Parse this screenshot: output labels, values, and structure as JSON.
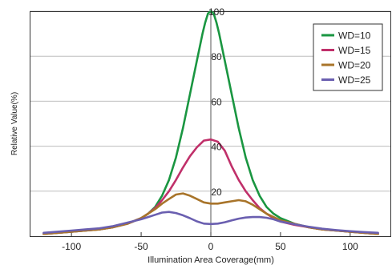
{
  "chart_data": {
    "type": "line",
    "xlabel": "Illumination Area Coverage(mm)",
    "ylabel": "Relative Value(%)",
    "xlim": [
      -130,
      130
    ],
    "ylim": [
      0,
      100
    ],
    "x_ticks": [
      "-100",
      "-50",
      "0",
      "50",
      "100"
    ],
    "x_tick_values": [
      -100,
      -50,
      0,
      50,
      100
    ],
    "y_ticks": [
      "20",
      "40",
      "60",
      "80",
      "100"
    ],
    "y_tick_values": [
      20,
      40,
      60,
      80,
      100
    ],
    "grid": "horizontal",
    "legend_position": "top-right",
    "series": [
      {
        "name": "WD=10",
        "color": "#1a9641",
        "x": [
          -120,
          -110,
          -100,
          -90,
          -80,
          -70,
          -60,
          -50,
          -45,
          -40,
          -35,
          -30,
          -25,
          -20,
          -15,
          -10,
          -8,
          -6,
          -4,
          -2,
          0,
          2,
          4,
          6,
          8,
          10,
          15,
          20,
          25,
          30,
          35,
          40,
          45,
          50,
          60,
          70,
          80,
          90,
          100,
          110,
          120
        ],
        "y": [
          1,
          1.5,
          2,
          2.5,
          3,
          4,
          5.5,
          8,
          10,
          13,
          18,
          25,
          35,
          48,
          63,
          78,
          84,
          90,
          95,
          99,
          100,
          99,
          95,
          90,
          84,
          78,
          63,
          48,
          35,
          25,
          18,
          13,
          10,
          8,
          5.5,
          4,
          3,
          2.5,
          2,
          1.5,
          1
        ]
      },
      {
        "name": "WD=15",
        "color": "#c0306a",
        "x": [
          -120,
          -110,
          -100,
          -90,
          -80,
          -70,
          -60,
          -50,
          -45,
          -40,
          -35,
          -30,
          -25,
          -20,
          -15,
          -10,
          -5,
          0,
          5,
          10,
          15,
          20,
          25,
          30,
          35,
          40,
          45,
          50,
          60,
          70,
          80,
          90,
          100,
          110,
          120
        ],
        "y": [
          1,
          1.5,
          2,
          2.5,
          3,
          4,
          5.5,
          8,
          10,
          12.5,
          16,
          20,
          25,
          30.5,
          35.5,
          39.5,
          42.5,
          43,
          42,
          38,
          31,
          25,
          20,
          16,
          12.5,
          10,
          8,
          6.5,
          5,
          4,
          3,
          2.5,
          2,
          1.5,
          1
        ]
      },
      {
        "name": "WD=20",
        "color": "#a8742a",
        "x": [
          -120,
          -110,
          -100,
          -90,
          -80,
          -70,
          -60,
          -50,
          -45,
          -40,
          -35,
          -30,
          -25,
          -20,
          -15,
          -10,
          -5,
          0,
          5,
          10,
          15,
          20,
          25,
          30,
          35,
          40,
          45,
          50,
          60,
          70,
          80,
          90,
          100,
          110,
          120
        ],
        "y": [
          1,
          1.5,
          2,
          2.5,
          3,
          4,
          5.5,
          8,
          10,
          12,
          14.5,
          16.5,
          18.5,
          19,
          18,
          16.5,
          15,
          14.5,
          14.5,
          15,
          15.5,
          16,
          15.5,
          14,
          12,
          10,
          8.5,
          7,
          5.5,
          4,
          3,
          2.5,
          2,
          1.5,
          1
        ]
      },
      {
        "name": "WD=25",
        "color": "#6a5fb0",
        "x": [
          -120,
          -110,
          -100,
          -90,
          -80,
          -70,
          -60,
          -50,
          -45,
          -40,
          -35,
          -30,
          -25,
          -20,
          -15,
          -10,
          -5,
          0,
          5,
          10,
          15,
          20,
          25,
          30,
          35,
          40,
          45,
          50,
          60,
          70,
          80,
          90,
          100,
          110,
          120
        ],
        "y": [
          1.5,
          2,
          2.5,
          3,
          3.5,
          4.5,
          6,
          7.5,
          8.5,
          9.5,
          10.5,
          10.8,
          10.3,
          9.3,
          8,
          6.6,
          5.6,
          5.4,
          5.6,
          6.2,
          7,
          7.8,
          8.3,
          8.5,
          8.5,
          8.2,
          7.5,
          6.5,
          5.3,
          4.2,
          3.3,
          2.7,
          2.2,
          1.8,
          1.5
        ]
      }
    ]
  }
}
